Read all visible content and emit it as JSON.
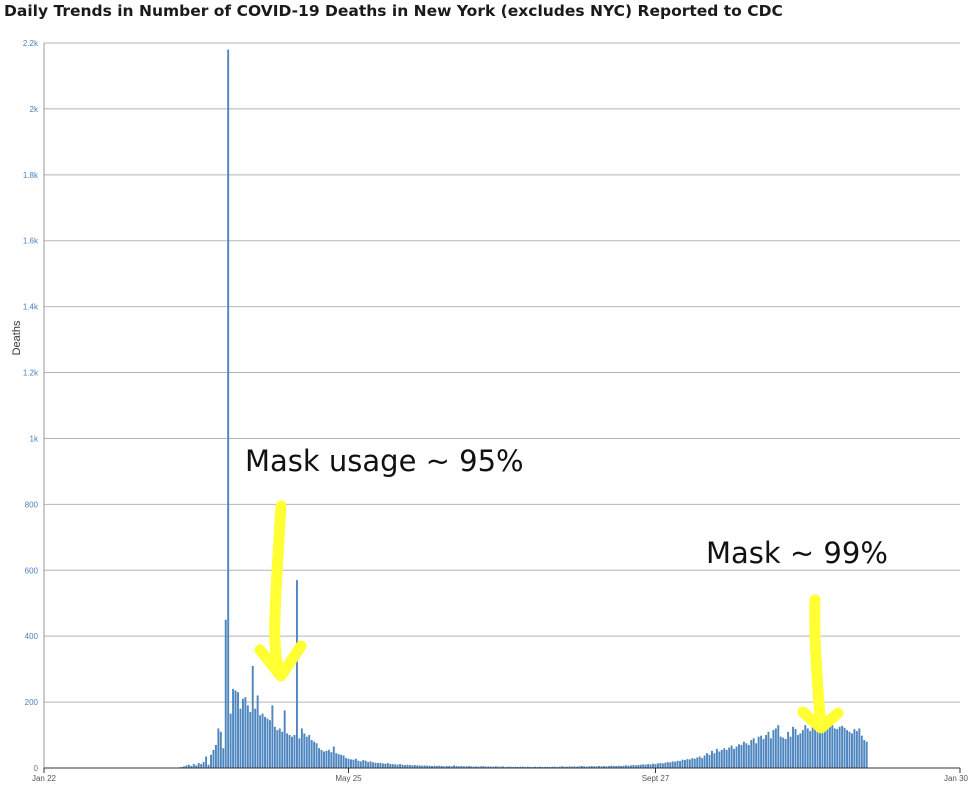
{
  "chart_data": {
    "type": "bar",
    "title": "Daily Trends in Number of COVID-19 Deaths in New York (excludes NYC) Reported to CDC",
    "ylabel": "Deaths",
    "xlabel": "",
    "ylim": [
      0,
      2200
    ],
    "grid": true,
    "y_ticks": [
      "0",
      "200",
      "400",
      "600",
      "800",
      "1k",
      "1.2k",
      "1.4k",
      "1.6k",
      "1.8k",
      "2k",
      "2.2k"
    ],
    "y_tick_values": [
      0,
      200,
      400,
      600,
      800,
      1000,
      1200,
      1400,
      1600,
      1800,
      2000,
      2200
    ],
    "x_ticks": [
      "Jan 22",
      "May 25",
      "Sept 27",
      "Jan 30"
    ],
    "x_tick_days": [
      0,
      124,
      249,
      373
    ],
    "bar_color": "#4e86bf",
    "start_date": "2020-01-22",
    "day_values": [
      0,
      0,
      0,
      0,
      0,
      0,
      0,
      0,
      0,
      0,
      0,
      0,
      0,
      0,
      0,
      0,
      0,
      0,
      0,
      0,
      0,
      0,
      0,
      0,
      0,
      0,
      0,
      0,
      0,
      0,
      0,
      0,
      0,
      0,
      0,
      0,
      0,
      0,
      0,
      0,
      0,
      0,
      0,
      0,
      0,
      0,
      0,
      0,
      0,
      0,
      0,
      0,
      0,
      1,
      1,
      2,
      3,
      5,
      8,
      10,
      6,
      12,
      8,
      15,
      12,
      18,
      35,
      10,
      40,
      55,
      70,
      120,
      110,
      60,
      450,
      2180,
      165,
      240,
      235,
      230,
      180,
      210,
      215,
      190,
      170,
      310,
      180,
      220,
      160,
      165,
      155,
      150,
      145,
      190,
      125,
      115,
      120,
      110,
      175,
      105,
      100,
      95,
      100,
      570,
      90,
      120,
      105,
      95,
      100,
      85,
      80,
      75,
      60,
      55,
      50,
      52,
      55,
      48,
      65,
      45,
      42,
      40,
      38,
      30,
      28,
      26,
      25,
      28,
      22,
      20,
      24,
      22,
      18,
      20,
      17,
      16,
      15,
      16,
      14,
      13,
      15,
      12,
      12,
      11,
      10,
      12,
      10,
      9,
      10,
      9,
      8,
      9,
      8,
      8,
      7,
      8,
      7,
      7,
      6,
      7,
      6,
      7,
      6,
      5,
      6,
      6,
      5,
      8,
      6,
      5,
      6,
      5,
      5,
      6,
      5,
      4,
      5,
      4,
      5,
      6,
      4,
      5,
      4,
      4,
      5,
      4,
      4,
      5,
      3,
      4,
      4,
      3,
      4,
      3,
      4,
      4,
      3,
      4,
      3,
      3,
      4,
      3,
      4,
      3,
      3,
      4,
      3,
      4,
      4,
      3,
      4,
      5,
      4,
      4,
      5,
      4,
      5,
      4,
      5,
      6,
      5,
      4,
      5,
      6,
      5,
      5,
      6,
      5,
      6,
      5,
      6,
      7,
      6,
      6,
      7,
      6,
      7,
      8,
      7,
      8,
      9,
      8,
      9,
      10,
      11,
      10,
      12,
      11,
      13,
      12,
      14,
      15,
      14,
      16,
      18,
      17,
      20,
      19,
      22,
      21,
      25,
      24,
      27,
      26,
      30,
      28,
      32,
      35,
      30,
      38,
      45,
      40,
      52,
      45,
      58,
      50,
      55,
      60,
      55,
      62,
      68,
      58,
      65,
      72,
      70,
      80,
      75,
      70,
      85,
      90,
      75,
      95,
      98,
      88,
      100,
      110,
      90,
      115,
      120,
      130,
      95,
      92,
      88,
      110,
      95,
      125,
      118,
      100,
      105,
      115,
      130,
      120,
      112,
      140,
      135,
      120,
      145,
      138,
      115,
      128,
      142,
      130,
      120,
      118,
      125,
      128,
      122,
      115,
      110,
      105,
      118,
      112,
      120,
      98,
      85,
      80
    ]
  },
  "annotations": [
    {
      "text": "Mask usage ~ 95%"
    },
    {
      "text": "Mask ~ 99%"
    }
  ],
  "arrow_color": "#ffff33"
}
